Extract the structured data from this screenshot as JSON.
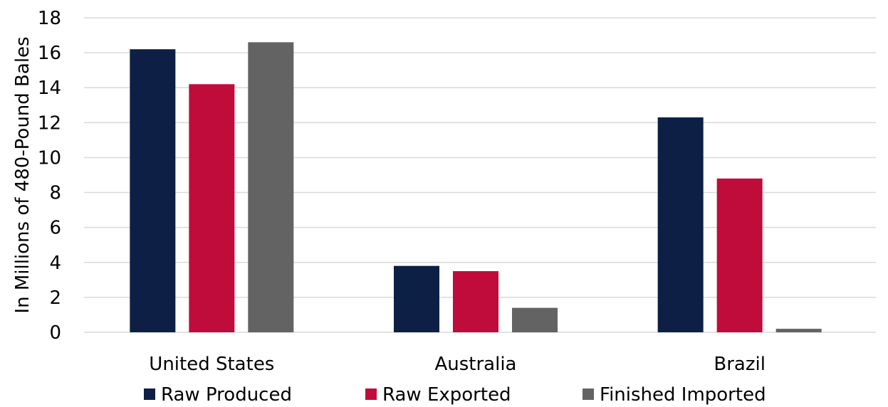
{
  "chart_data": {
    "type": "bar",
    "title": "",
    "xlabel": "",
    "ylabel": "In Millions of 480-Pound Bales",
    "categories": [
      "United States",
      "Australia",
      "Brazil"
    ],
    "series": [
      {
        "name": "Raw Produced",
        "color": "#0d1f44",
        "values": [
          16.2,
          3.8,
          12.3
        ]
      },
      {
        "name": "Raw Exported",
        "color": "#c00c3a",
        "values": [
          14.2,
          3.5,
          8.8
        ]
      },
      {
        "name": "Finished Imported",
        "color": "#636363",
        "values": [
          16.6,
          1.4,
          0.2
        ]
      }
    ],
    "ylim": [
      0,
      18
    ],
    "yticks": [
      0,
      2,
      4,
      6,
      8,
      10,
      12,
      14,
      16,
      18
    ],
    "grid": true,
    "legend_position": "bottom"
  }
}
